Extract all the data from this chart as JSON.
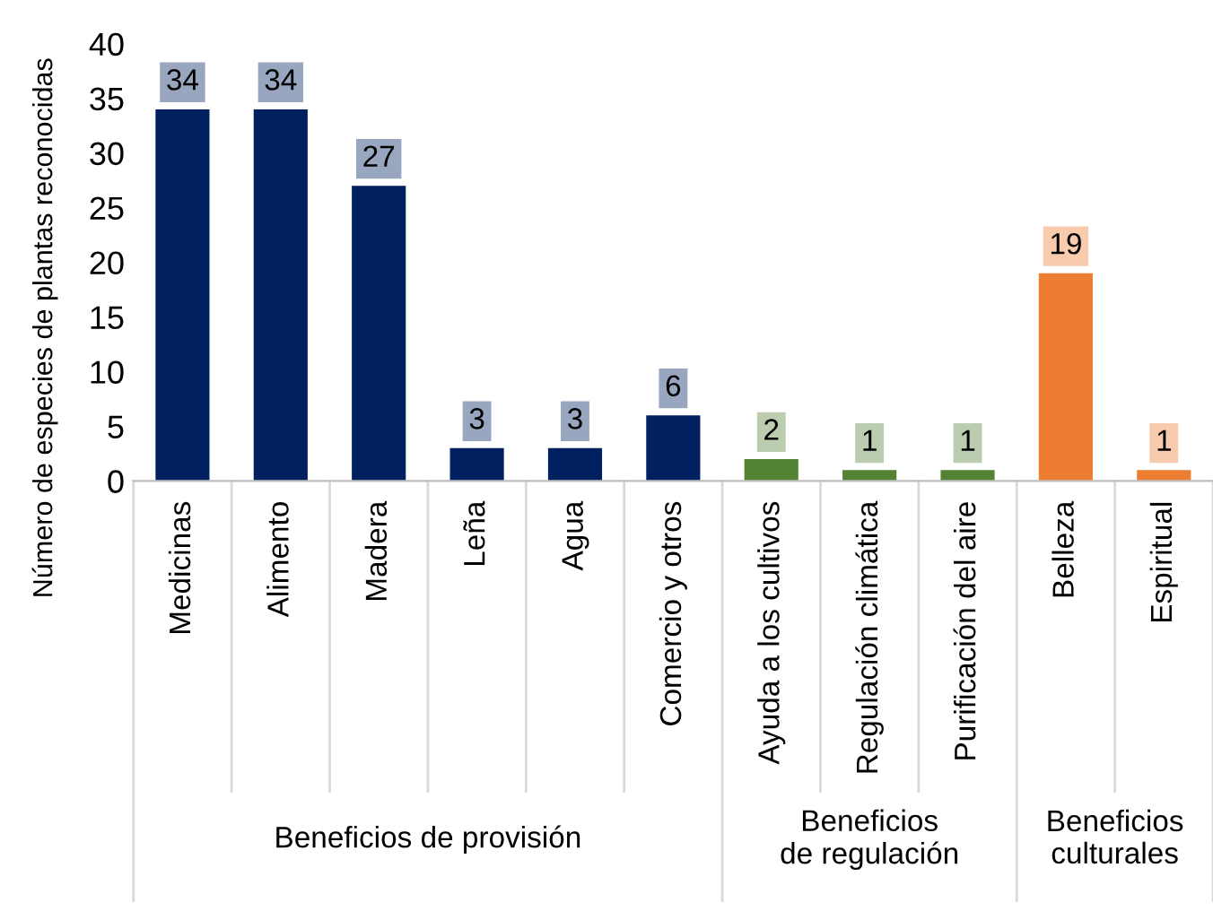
{
  "chart_data": {
    "type": "bar",
    "ylabel": "Número de especies de plantas reconocidas",
    "categories": [
      "Medicinas",
      "Alimento",
      "Madera",
      "Leña",
      "Agua",
      "Comercio y otros",
      "Ayuda a los cultivos",
      "Regulación climática",
      "Purificación del aire",
      "Belleza",
      "Espiritual"
    ],
    "values": [
      34,
      34,
      27,
      3,
      3,
      6,
      2,
      1,
      1,
      19,
      1
    ],
    "colors": [
      "#002060",
      "#002060",
      "#002060",
      "#002060",
      "#002060",
      "#002060",
      "#548235",
      "#548235",
      "#548235",
      "#ed7d31",
      "#ed7d31"
    ],
    "ylim": [
      0,
      40
    ],
    "yticks": [
      0,
      5,
      10,
      15,
      20,
      25,
      30,
      35,
      40
    ],
    "grid": false,
    "data_labels": true,
    "annotations": [
      "Beneficios de provisión",
      "Beneficios de regulación",
      "Beneficios culturales"
    ]
  }
}
